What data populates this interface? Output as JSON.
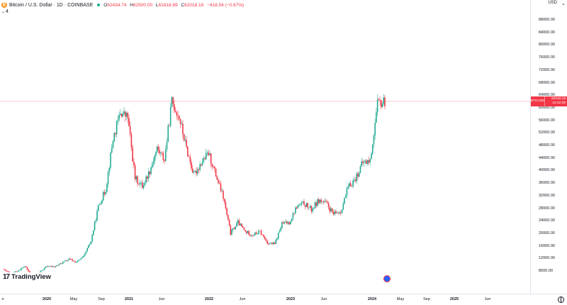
{
  "header": {
    "coin_symbol": "₿",
    "title": "Bitcoin / U.S. Dollar · 1D · COINBASE",
    "ohlc": {
      "open_label": "O",
      "open": "62434.74",
      "high_label": "H",
      "high": "62500.00",
      "low_label": "L",
      "low": "61818.89",
      "close_label": "C",
      "close": "62018.18",
      "change": "−418.54 (−0.67%)"
    },
    "indicator_count": "4",
    "live_color": "#22ab94"
  },
  "price_axis": {
    "currency": "USD",
    "settings_icon": "chevron-down-icon",
    "ticks": [
      "88000.00",
      "84000.00",
      "80000.00",
      "76000.00",
      "72000.00",
      "68000.00",
      "64000.00",
      "60000.00",
      "56000.00",
      "52000.00",
      "48000.00",
      "44000.00",
      "40000.00",
      "36000.00",
      "32000.00",
      "28000.00",
      "24000.00",
      "20000.00",
      "16000.00",
      "12000.00",
      "8000.00"
    ],
    "last_price_tag": {
      "symbol": "BTCUSD",
      "price": "62018.18",
      "countdown": "15:02:08",
      "color": "#f23645"
    }
  },
  "time_axis": {
    "labels": [
      {
        "text": "n",
        "bold": false
      },
      {
        "text": "2020",
        "bold": true
      },
      {
        "text": "May",
        "bold": false
      },
      {
        "text": "Sep",
        "bold": false
      },
      {
        "text": "2021",
        "bold": true
      },
      {
        "text": "Jun",
        "bold": false
      },
      {
        "text": "2022",
        "bold": true
      },
      {
        "text": "Jun",
        "bold": false
      },
      {
        "text": "2023",
        "bold": true
      },
      {
        "text": "Jun",
        "bold": false
      },
      {
        "text": "2024",
        "bold": true
      },
      {
        "text": "May",
        "bold": false
      },
      {
        "text": "Sep",
        "bold": false
      },
      {
        "text": "2025",
        "bold": true
      },
      {
        "text": "Jun",
        "bold": false
      }
    ]
  },
  "logo": {
    "mark": "17",
    "text": "TradingView"
  },
  "colors": {
    "up": "#22ab94",
    "down": "#f23645",
    "last_price_line": "#f23645"
  },
  "chart_data": {
    "type": "line",
    "title": "",
    "xlabel": "",
    "ylabel": "",
    "ylim": [
      0,
      92000
    ],
    "x": [
      "2019-11",
      "2019-12",
      "2020-01",
      "2020-02",
      "2020-03",
      "2020-04",
      "2020-05",
      "2020-06",
      "2020-07",
      "2020-08",
      "2020-09",
      "2020-10",
      "2020-11",
      "2020-12",
      "2021-01",
      "2021-02",
      "2021-03",
      "2021-04",
      "2021-05",
      "2021-06",
      "2021-07",
      "2021-08",
      "2021-09",
      "2021-10",
      "2021-11",
      "2021-12",
      "2022-01",
      "2022-02",
      "2022-03",
      "2022-04",
      "2022-05",
      "2022-06",
      "2022-07",
      "2022-08",
      "2022-09",
      "2022-10",
      "2022-11",
      "2022-12",
      "2023-01",
      "2023-02",
      "2023-03",
      "2023-04",
      "2023-05",
      "2023-06",
      "2023-07",
      "2023-08",
      "2023-09",
      "2023-10",
      "2023-11",
      "2023-12",
      "2024-01",
      "2024-02",
      "2024-03"
    ],
    "series": [
      {
        "values": [
          8500,
          7200,
          8000,
          9500,
          6200,
          7600,
          9500,
          9300,
          10500,
          11700,
          10800,
          12500,
          17500,
          28500,
          34000,
          50000,
          58500,
          57000,
          37500,
          35000,
          40000,
          47000,
          43500,
          62000,
          57000,
          47000,
          38500,
          42500,
          45500,
          38500,
          31500,
          20000,
          23500,
          20500,
          19500,
          20500,
          17000,
          16500,
          23000,
          23500,
          28500,
          29500,
          27500,
          30500,
          29500,
          26000,
          27000,
          34500,
          37500,
          42500,
          43000,
          61000,
          62018
        ]
      }
    ],
    "last_price": 62018.18,
    "grid": false,
    "legend": "none"
  }
}
